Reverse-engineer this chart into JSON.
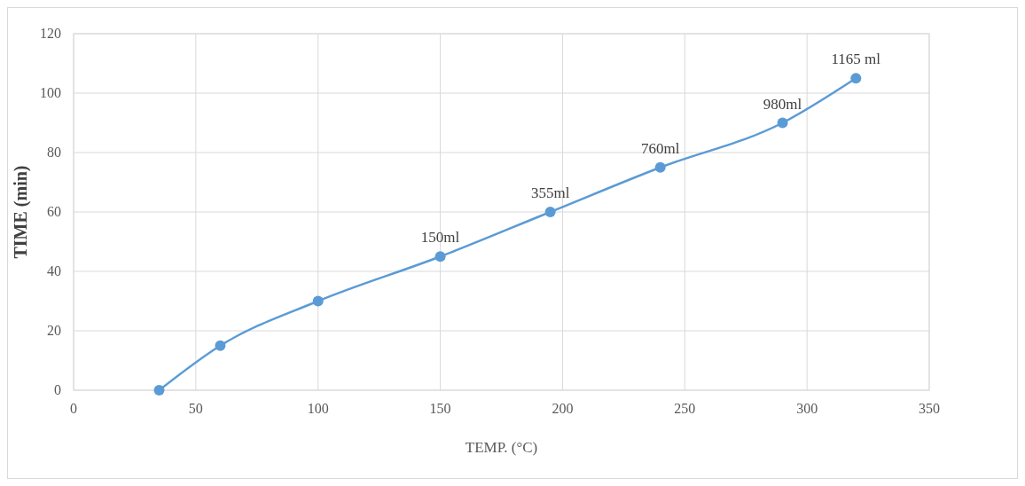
{
  "chart_data": {
    "type": "line",
    "xlabel": "TEMP. (°C)",
    "ylabel": "TIME (min)",
    "x": [
      35,
      60,
      100,
      150,
      195,
      240,
      290,
      320
    ],
    "series": [
      {
        "color": "#5b9bd5",
        "values": [
          0,
          15,
          30,
          45,
          60,
          75,
          90,
          105
        ]
      }
    ],
    "xlim": [
      0,
      350
    ],
    "xticks": [
      0,
      50,
      100,
      150,
      200,
      250,
      300,
      350
    ],
    "ylim": [
      0,
      120
    ],
    "yticks": [
      0,
      20,
      40,
      60,
      80,
      100,
      120
    ],
    "grid": true,
    "marker": "circle",
    "annotations": [
      {
        "text": "150ml",
        "x": 150,
        "y": 45
      },
      {
        "text": "355ml",
        "x": 195,
        "y": 60
      },
      {
        "text": "760ml",
        "x": 240,
        "y": 75
      },
      {
        "text": "980ml",
        "x": 290,
        "y": 90
      },
      {
        "text": "1165 ml",
        "x": 320,
        "y": 105
      }
    ]
  }
}
